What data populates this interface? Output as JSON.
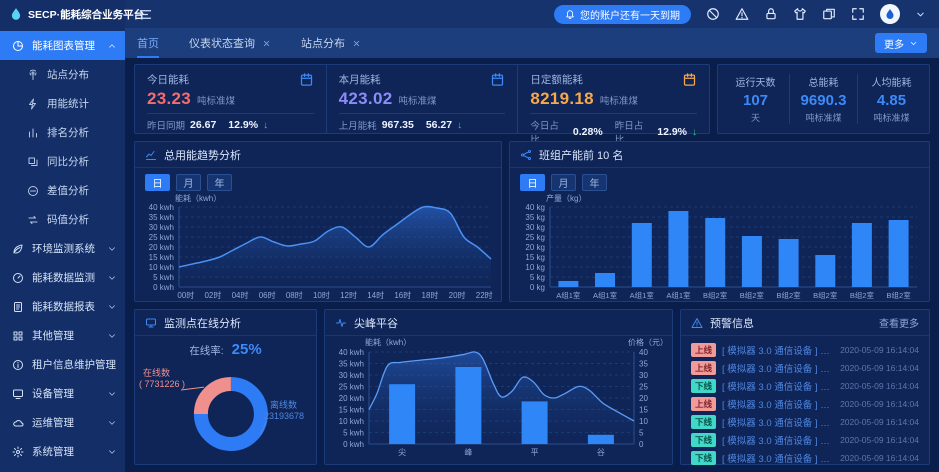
{
  "colors": {
    "accent": "#2e7bf6",
    "value_red": "#f56c6c",
    "value_purple": "#8c8cf8",
    "value_orange": "#f7a84b",
    "stat_blue": "#3d8af7",
    "pie_online": "#f0908e",
    "pie_offline": "#2e7bf6"
  },
  "header": {
    "app_title": "SECP·能耗综合业务平台",
    "notification": "您的账户还有一天到期",
    "action_icons": [
      "slash-circle",
      "warning",
      "lock",
      "shirt",
      "windows",
      "fullscreen"
    ]
  },
  "sidebar": {
    "items": [
      {
        "label": "能耗图表管理",
        "icon": "pie",
        "active": true,
        "expanded": true,
        "children": [
          {
            "label": "站点分布",
            "icon": "site"
          },
          {
            "label": "用能统计",
            "icon": "bolt"
          },
          {
            "label": "排名分析",
            "icon": "rank"
          },
          {
            "label": "同比分析",
            "icon": "compare"
          },
          {
            "label": "差值分析",
            "icon": "diff"
          },
          {
            "label": "码值分析",
            "icon": "swap"
          }
        ]
      },
      {
        "label": "环境监测系统",
        "icon": "leaf"
      },
      {
        "label": "能耗数据监测",
        "icon": "gauge"
      },
      {
        "label": "能耗数据报表",
        "icon": "report"
      },
      {
        "label": "其他管理",
        "icon": "grid"
      },
      {
        "label": "租户信息维护管理",
        "icon": "info"
      },
      {
        "label": "设备管理",
        "icon": "device"
      },
      {
        "label": "运维管理",
        "icon": "cloud"
      },
      {
        "label": "系统管理",
        "icon": "gear"
      }
    ]
  },
  "tabs": {
    "items": [
      {
        "label": "首页",
        "active": true,
        "closable": false
      },
      {
        "label": "仪表状态查询",
        "active": false,
        "closable": true
      },
      {
        "label": "站点分布",
        "active": false,
        "closable": true
      }
    ],
    "more_label": "更多"
  },
  "stat_cards": [
    {
      "title": "今日能耗",
      "value": "23.23",
      "unit": "吨标准煤",
      "value_color": "#f56c6c",
      "icon": "calendar",
      "icon_color": "#3d8af7",
      "footer": [
        {
          "label": "昨日同期",
          "value": "26.67"
        },
        {
          "label": "",
          "value": "12.9%",
          "arrow": "down"
        }
      ]
    },
    {
      "title": "本月能耗",
      "value": "423.02",
      "unit": "吨标准煤",
      "value_color": "#8c8cf8",
      "icon": "calendar",
      "icon_color": "#3d8af7",
      "footer": [
        {
          "label": "上月能耗",
          "value": "967.35"
        },
        {
          "label": "",
          "value": "56.27",
          "arrow": "down"
        }
      ]
    },
    {
      "title": "日定额能耗",
      "value": "8219.18",
      "unit": "吨标准煤",
      "value_color": "#f7a84b",
      "icon": "calendar",
      "icon_color": "#f7a84b",
      "footer": [
        {
          "label": "今日占比",
          "value": "0.28%"
        },
        {
          "label": "昨日占比",
          "value": "12.9%",
          "arrow": "down"
        }
      ]
    }
  ],
  "summary": [
    {
      "label": "运行天数",
      "value": "107",
      "unit": "天"
    },
    {
      "label": "总能耗",
      "value": "9690.3",
      "unit": "吨标准煤"
    },
    {
      "label": "人均能耗",
      "value": "4.85",
      "unit": "吨标准煤"
    }
  ],
  "alerts": {
    "title": "预警信息",
    "more_label": "查看更多",
    "items": [
      {
        "status": "上线",
        "message": "[ 模拟器 3.0 通信设备 ] 模拟器 3.0...",
        "time": "2020-05-09 16:14:04"
      },
      {
        "status": "上线",
        "message": "[ 模拟器 3.0 通信设备 ] 模拟器 3.0...",
        "time": "2020-05-09 16:14:04"
      },
      {
        "status": "下线",
        "message": "[ 模拟器 3.0 通信设备 ] 模拟器 3.0...",
        "time": "2020-05-09 16:14:04"
      },
      {
        "status": "上线",
        "message": "[ 模拟器 3.0 通信设备 ] 模拟器 3.0...",
        "time": "2020-05-09 16:14:04"
      },
      {
        "status": "下线",
        "message": "[ 模拟器 3.0 通信设备 ] 模拟器 3.0...",
        "time": "2020-05-09 16:14:04"
      },
      {
        "status": "下线",
        "message": "[ 模拟器 3.0 通信设备 ] 模拟器 3.0...",
        "time": "2020-05-09 16:14:04"
      },
      {
        "status": "下线",
        "message": "[ 模拟器 3.0 通信设备 ] 模拟器 3.0...",
        "time": "2020-05-09 16:14:04"
      }
    ]
  },
  "chart_data": [
    {
      "id": "trend",
      "type": "area",
      "title": "总用能趋势分析",
      "icon": "trend",
      "period_buttons": [
        "日",
        "月",
        "年"
      ],
      "active_period": "日",
      "ylabel": "能耗（kwh）",
      "ylim": [
        0,
        40
      ],
      "y_tick_step": 5,
      "y_unit": "kwh",
      "x_tick_labels": [
        "00时",
        "02时",
        "04时",
        "06时",
        "08时",
        "10时",
        "12时",
        "14时",
        "16时",
        "18时",
        "20时",
        "22时"
      ],
      "values": [
        10,
        11.5,
        13,
        15,
        18.5,
        22,
        25,
        22.5,
        20.5,
        21.5,
        23,
        28,
        30,
        25,
        20,
        26,
        31,
        36,
        40,
        39.5,
        37,
        25,
        20,
        14
      ],
      "grid": true,
      "legend": false
    },
    {
      "id": "bars",
      "type": "bar",
      "title": "班组产能前 10 名",
      "icon": "share",
      "period_buttons": [
        "日",
        "月",
        "年"
      ],
      "active_period": "日",
      "ylabel": "产量（kg）",
      "ylim": [
        0,
        40
      ],
      "y_tick_step": 5,
      "y_unit": "kg",
      "categories": [
        "A组1室",
        "A组1室",
        "A组1室",
        "A组1室",
        "B组2室",
        "B组2室",
        "B组2室",
        "B组2室",
        "B组2室",
        "B组2室"
      ],
      "values": [
        3,
        7,
        32,
        38,
        34.5,
        25.5,
        24,
        16,
        32,
        33.5
      ],
      "grid": true,
      "legend": false
    },
    {
      "id": "donut",
      "type": "pie",
      "title": "监测点在线分析",
      "icon": "monitor",
      "rate_label": "在线率:",
      "rate_value": "25%",
      "slices": [
        {
          "name": "在线数",
          "value": 7731226,
          "display": "( 7731226 )",
          "color": "#f0908e"
        },
        {
          "name": "离线数",
          "value": 23193678,
          "display": "23193678",
          "color": "#2e7bf6"
        }
      ],
      "legend": false
    },
    {
      "id": "combo",
      "type": "bar+area",
      "title": "尖峰平谷",
      "icon": "pulse",
      "ylabel_left": "能耗（kwh）",
      "ylabel_right": "价格（元）",
      "ylim": [
        0,
        40
      ],
      "y_tick_step": 5,
      "y_unit_left": "kwh",
      "categories": [
        "尖",
        "峰",
        "平",
        "谷"
      ],
      "bar_values": [
        26,
        33.5,
        18.5,
        4
      ],
      "line_points": [
        [
          0,
          15
        ],
        [
          0.03,
          22
        ],
        [
          0.07,
          34
        ],
        [
          0.12,
          35.5
        ],
        [
          0.2,
          36.5
        ],
        [
          0.28,
          37.5
        ],
        [
          0.36,
          39
        ],
        [
          0.4,
          40
        ],
        [
          0.43,
          37
        ],
        [
          0.47,
          26
        ],
        [
          0.5,
          20.5
        ],
        [
          0.54,
          23
        ],
        [
          0.58,
          29
        ],
        [
          0.62,
          27
        ],
        [
          0.66,
          21.5
        ],
        [
          0.7,
          20
        ],
        [
          0.74,
          22
        ],
        [
          0.79,
          25
        ],
        [
          0.83,
          23.5
        ],
        [
          0.88,
          18
        ],
        [
          0.93,
          14.5
        ],
        [
          1,
          10
        ]
      ],
      "grid": true,
      "legend": false
    }
  ]
}
